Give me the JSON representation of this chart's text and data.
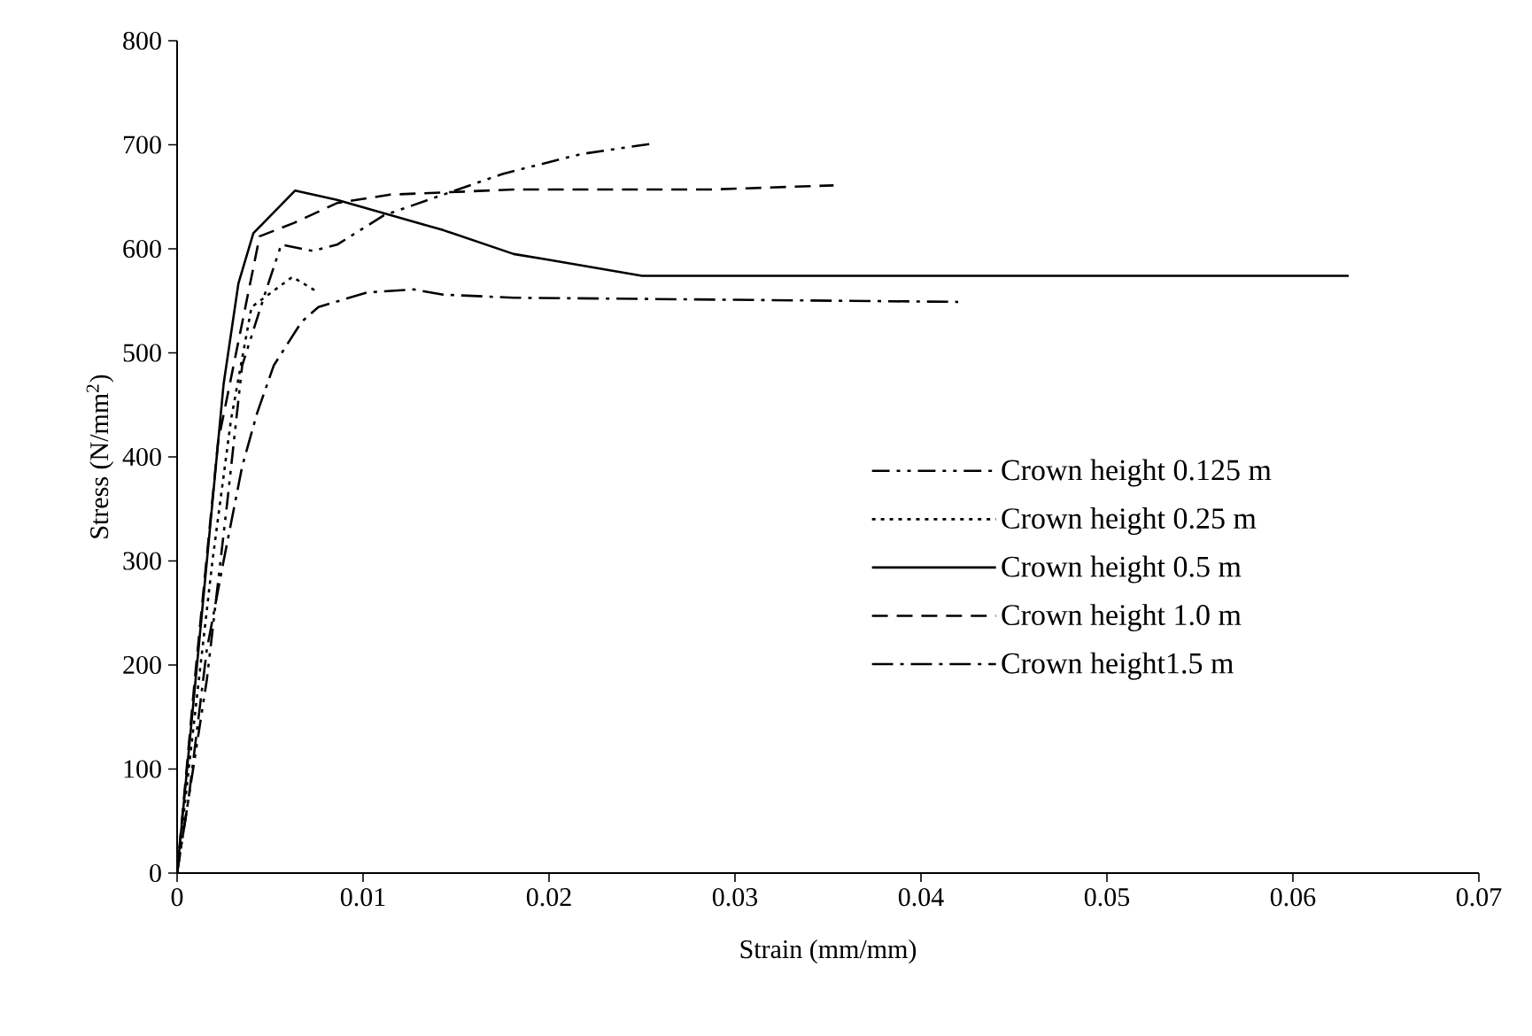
{
  "chart_data": {
    "type": "line",
    "xlabel": "Strain  (mm/mm)",
    "ylabel": "Stress  (N/mm$^{2}$)",
    "xlim": [
      0,
      0.07
    ],
    "ylim": [
      0,
      800
    ],
    "xticks": [
      0,
      0.01,
      0.02,
      0.03,
      0.04,
      0.05,
      0.06,
      0.07
    ],
    "yticks": [
      0,
      100,
      200,
      300,
      400,
      500,
      600,
      700,
      800
    ],
    "grid": false,
    "legend": "right",
    "marker": "none",
    "series": [
      {
        "name": "Crown height 0.125 m",
        "color": "#000000",
        "line_style": "dashdotdot",
        "x": [
          0,
          0.0016,
          0.0027,
          0.0035,
          0.0048,
          0.0056,
          0.0073,
          0.0086,
          0.0111,
          0.0143,
          0.0175,
          0.0217,
          0.0255
        ],
        "values": [
          0,
          186,
          357,
          488,
          561,
          604,
          598,
          604,
          632,
          652,
          672,
          691,
          701
        ]
      },
      {
        "name": "Crown height 0.25 m",
        "color": "#000000",
        "line_style": "dotted",
        "x": [
          0,
          0.00063,
          0.0019,
          0.0029,
          0.004,
          0.0062,
          0.0076
        ],
        "values": [
          0,
          101,
          300,
          436,
          544,
          573,
          558
        ]
      },
      {
        "name": "Crown height 0.5 m",
        "color": "#000000",
        "line_style": "solid",
        "x": [
          0,
          0.0013,
          0.0025,
          0.0033,
          0.0041,
          0.00635,
          0.0086,
          0.0143,
          0.0181,
          0.0198,
          0.025,
          0.063
        ],
        "values": [
          0,
          243,
          470,
          567,
          615,
          656,
          647,
          618,
          595,
          590,
          574,
          574
        ]
      },
      {
        "name": "Crown height 1.0  m",
        "color": "#000000",
        "line_style": "dashed",
        "x": [
          0,
          0.00095,
          0.0022,
          0.00444,
          0.0063,
          0.0086,
          0.0114,
          0.0181,
          0.0287,
          0.0353
        ],
        "values": [
          0,
          186,
          414,
          612,
          625,
          644,
          652,
          657,
          657,
          661
        ]
      },
      {
        "name": "Crown  height1.5 m",
        "color": "#000000",
        "line_style": "dashdot",
        "x": [
          0,
          0.00063,
          0.0016,
          0.0025,
          0.0035,
          0.0043,
          0.0052,
          0.0067,
          0.0076,
          0.0102,
          0.0127,
          0.0143,
          0.0181,
          0.042
        ],
        "values": [
          0,
          73,
          215,
          300,
          391,
          442,
          488,
          530,
          544,
          558,
          561,
          556,
          553,
          549
        ]
      }
    ]
  }
}
